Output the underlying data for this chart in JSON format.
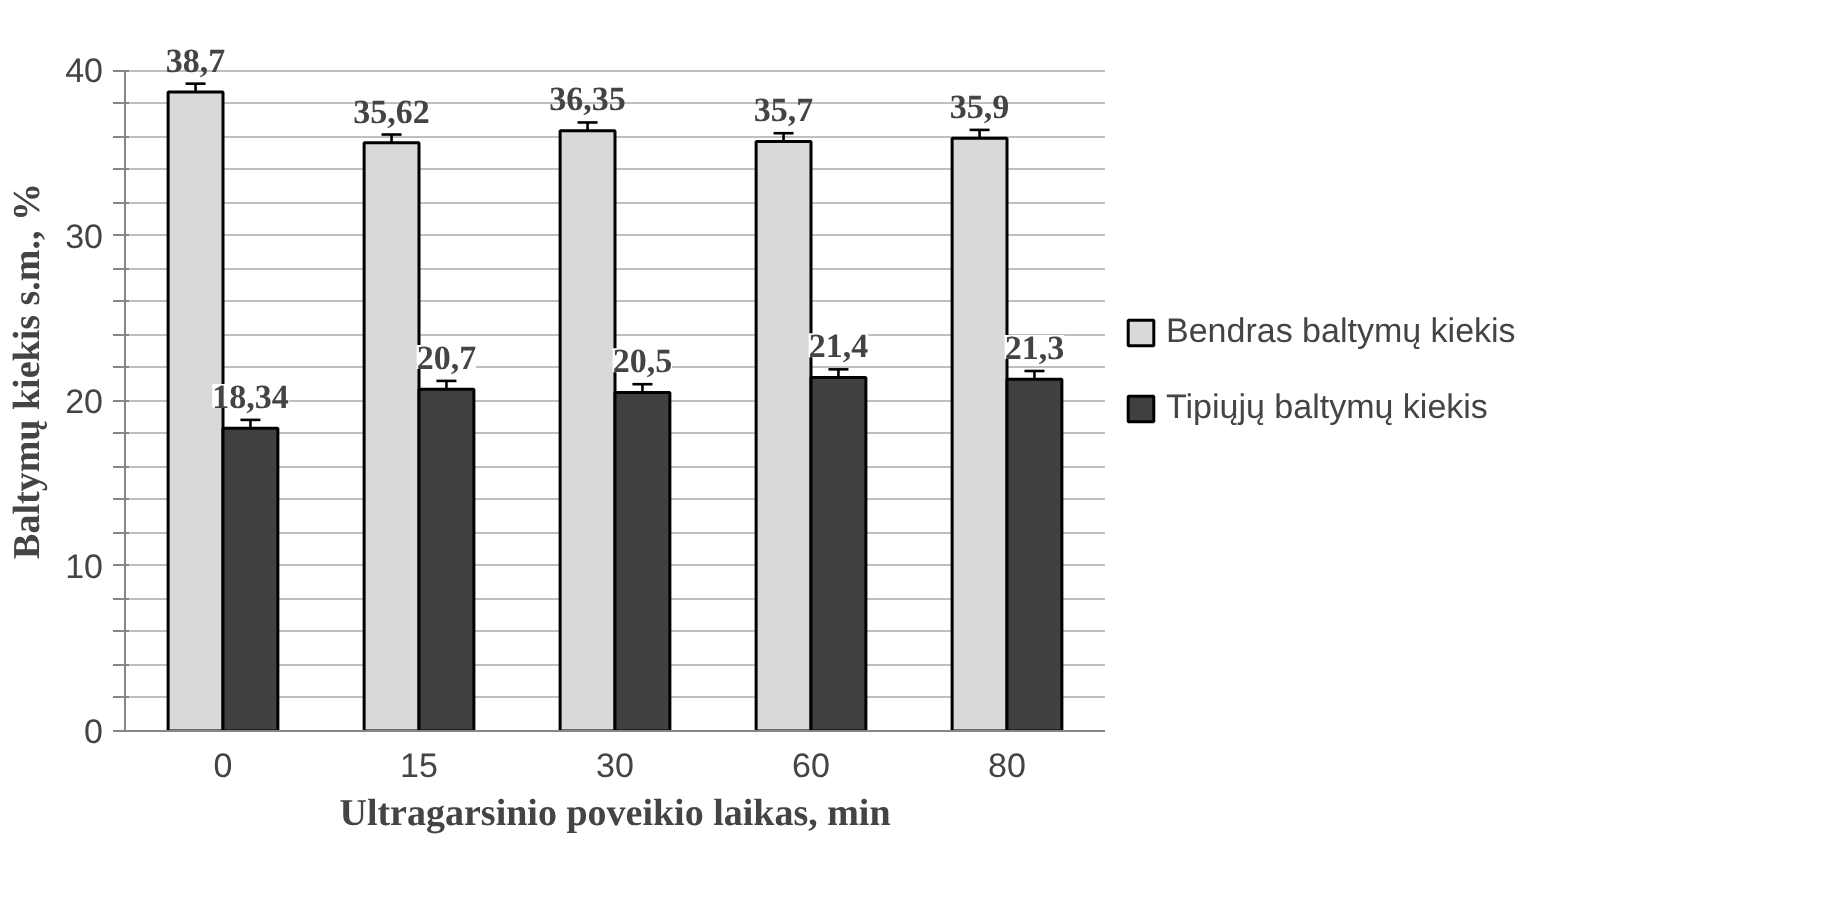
{
  "chart_data": {
    "type": "bar",
    "categories": [
      "0",
      "15",
      "30",
      "60",
      "80"
    ],
    "xlabel": "Ultragarsinio poveikio laikas, min",
    "ylabel": "Baltymų kiekis s.m., %",
    "series": [
      {
        "name": "Bendras baltymų kiekis",
        "color": "#d9d9d9",
        "values": [
          38.7,
          35.62,
          36.35,
          35.7,
          35.9
        ],
        "errors": [
          0.5,
          0.5,
          0.5,
          0.5,
          0.5
        ],
        "value_labels": [
          "38,7",
          "35,62",
          "36,35",
          "35,7",
          "35,9"
        ]
      },
      {
        "name": "Tipiųjų baltymų kiekis",
        "color": "#404040",
        "values": [
          18.34,
          20.7,
          20.5,
          21.4,
          21.3
        ],
        "errors": [
          0.5,
          0.5,
          0.5,
          0.5,
          0.5
        ],
        "value_labels": [
          "18,34",
          "20,7",
          "20,5",
          "21,4",
          "21,3"
        ]
      }
    ],
    "ylim": [
      0,
      40
    ],
    "yticks": [
      0,
      {
        "value": 2,
        "label": null
      },
      {
        "value": 4,
        "label": null
      },
      {
        "value": 6,
        "label": null
      },
      {
        "value": 8,
        "label": null
      },
      10,
      {
        "value": 12,
        "label": null
      },
      {
        "value": 14,
        "label": null
      },
      {
        "value": 16,
        "label": null
      },
      {
        "value": 18,
        "label": null
      },
      20,
      {
        "value": 22,
        "label": null
      },
      {
        "value": 24,
        "label": null
      },
      {
        "value": 26,
        "label": null
      },
      {
        "value": 28,
        "label": null
      },
      30,
      {
        "value": 32,
        "label": null
      },
      {
        "value": 34,
        "label": null
      },
      {
        "value": 36,
        "label": null
      },
      {
        "value": 38,
        "label": null
      },
      40
    ],
    "grid": "y",
    "legend": "right"
  }
}
